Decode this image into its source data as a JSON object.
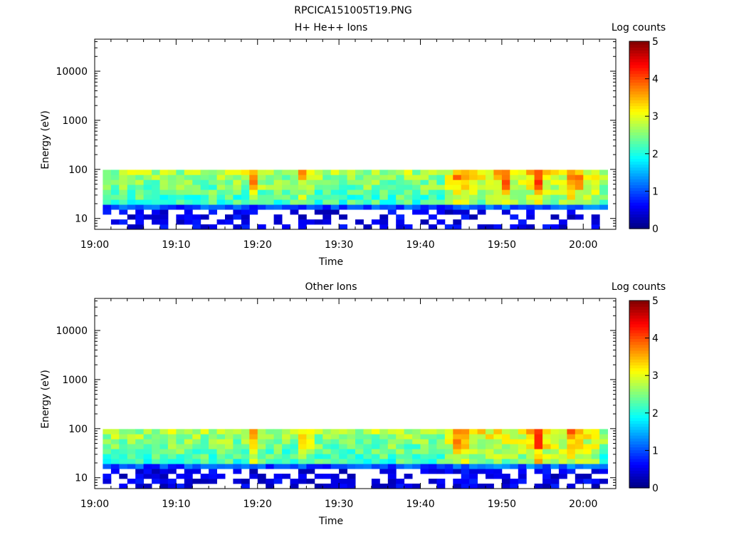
{
  "figure_title": "RPCICA151005T19.PNG",
  "chart_data": [
    {
      "type": "heatmap",
      "title": "H+ He++ Ions",
      "xlabel": "Time",
      "ylabel": "Energy (eV)",
      "x_ticks": [
        "19:00",
        "19:10",
        "19:20",
        "19:30",
        "19:40",
        "19:50",
        "20:00"
      ],
      "x_range_minutes": [
        0,
        64
      ],
      "y_ticks": [
        "10",
        "100",
        "1000",
        "10000"
      ],
      "y_range_ev": [
        6,
        45000
      ],
      "y_scale": "log",
      "data_time_range_minutes": [
        1,
        63
      ],
      "data_energy_range_ev": [
        6,
        98
      ],
      "colorbar": {
        "label": "Log counts",
        "ticks": [
          "0",
          "1",
          "2",
          "3",
          "4",
          "5"
        ],
        "range": [
          0,
          5
        ],
        "colormap": "jet"
      },
      "hot_spots": [
        {
          "time_min": 19.5,
          "energy_ev": 90,
          "log_counts": 3.6
        },
        {
          "time_min": 25.5,
          "energy_ev": 90,
          "log_counts": 3.3
        },
        {
          "time_min": 45,
          "energy_ev": 90,
          "log_counts": 3.7
        },
        {
          "time_min": 50.3,
          "energy_ev": 90,
          "log_counts": 3.5
        },
        {
          "time_min": 54.5,
          "energy_ev": 90,
          "log_counts": 3.8
        },
        {
          "time_min": 59,
          "energy_ev": 90,
          "log_counts": 3.6
        }
      ]
    },
    {
      "type": "heatmap",
      "title": "Other Ions",
      "xlabel": "Time",
      "ylabel": "Energy (eV)",
      "x_ticks": [
        "19:00",
        "19:10",
        "19:20",
        "19:30",
        "19:40",
        "19:50",
        "20:00"
      ],
      "x_range_minutes": [
        0,
        64
      ],
      "y_ticks": [
        "10",
        "100",
        "1000",
        "10000"
      ],
      "y_range_ev": [
        6,
        45000
      ],
      "y_scale": "log",
      "data_time_range_minutes": [
        1,
        63
      ],
      "data_energy_range_ev": [
        6,
        98
      ],
      "colorbar": {
        "label": "Log counts",
        "ticks": [
          "0",
          "1",
          "2",
          "3",
          "4",
          "5"
        ],
        "range": [
          0,
          5
        ],
        "colormap": "jet"
      },
      "hot_spots": [
        {
          "time_min": 19.5,
          "energy_ev": 90,
          "log_counts": 3.7
        },
        {
          "time_min": 26,
          "energy_ev": 90,
          "log_counts": 3.5
        },
        {
          "time_min": 45,
          "energy_ev": 90,
          "log_counts": 3.8
        },
        {
          "time_min": 54.5,
          "energy_ev": 90,
          "log_counts": 3.9
        },
        {
          "time_min": 59,
          "energy_ev": 90,
          "log_counts": 3.7
        }
      ]
    }
  ]
}
